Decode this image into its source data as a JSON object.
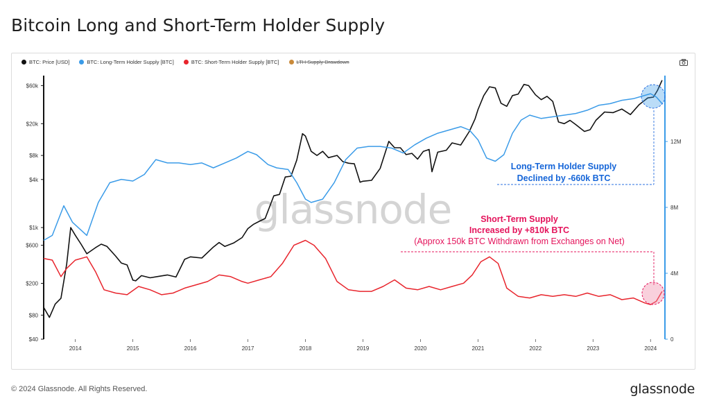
{
  "page": {
    "title": "Bitcoin Long and Short-Term Holder Supply",
    "footer": "© 2024 Glassnode. All Rights Reserved.",
    "brand": "glassnode",
    "watermark": "glassnode"
  },
  "legend": [
    {
      "label": "BTC: Price [USD]",
      "color": "#111111",
      "strike": false
    },
    {
      "label": "BTC: Long-Term Holder Supply [BTC]",
      "color": "#3a9be8",
      "strike": false
    },
    {
      "label": "BTC: Short-Term Holder Supply [BTC]",
      "color": "#e8242c",
      "strike": false
    },
    {
      "label": "LTH Supply Drawdown",
      "color": "#c98a3a",
      "strike": true
    }
  ],
  "annotations": {
    "lth_line1": "Long-Term Holder Supply",
    "lth_line2": "Declined by -660k BTC",
    "sth_line1": "Short-Term Supply",
    "sth_line2": "Increased by +810k BTC",
    "sth_line3": "(Approx 150k BTC Withdrawn from Exchanges on Net)"
  },
  "colors": {
    "price": "#111111",
    "lth": "#3a9be8",
    "sth": "#e8242c",
    "lth_text": "#1565d8",
    "sth_text": "#e4135b"
  },
  "chart_data": {
    "type": "line",
    "title": "Bitcoin Long and Short-Term Holder Supply",
    "x_ticks": [
      "2014",
      "2015",
      "2016",
      "2017",
      "2018",
      "2019",
      "2020",
      "2021",
      "2022",
      "2023",
      "2024"
    ],
    "x_range": [
      2013.45,
      2024.25
    ],
    "left_axis": {
      "scale": "log",
      "range": [
        40,
        80000
      ],
      "ticks": [
        {
          "value": 40,
          "label": "$40"
        },
        {
          "value": 80,
          "label": "$80"
        },
        {
          "value": 200,
          "label": "$200"
        },
        {
          "value": 600,
          "label": "$600"
        },
        {
          "value": 1000,
          "label": "$1k"
        },
        {
          "value": 4000,
          "label": "$4k"
        },
        {
          "value": 8000,
          "label": "$8k"
        },
        {
          "value": 20000,
          "label": "$20k"
        },
        {
          "value": 60000,
          "label": "$60k"
        }
      ]
    },
    "right_axis": {
      "scale": "linear",
      "range": [
        0,
        16000000
      ],
      "ticks": [
        {
          "value": 0,
          "label": "0"
        },
        {
          "value": 4000000,
          "label": "4M"
        },
        {
          "value": 8000000,
          "label": "8M"
        },
        {
          "value": 12000000,
          "label": "12M"
        }
      ]
    },
    "series": [
      {
        "name": "BTC: Price [USD]",
        "axis": "left",
        "points": [
          [
            2013.45,
            100
          ],
          [
            2013.55,
            75
          ],
          [
            2013.65,
            110
          ],
          [
            2013.75,
            130
          ],
          [
            2013.85,
            350
          ],
          [
            2013.92,
            1000
          ],
          [
            2014.0,
            800
          ],
          [
            2014.1,
            620
          ],
          [
            2014.2,
            470
          ],
          [
            2014.35,
            560
          ],
          [
            2014.45,
            620
          ],
          [
            2014.55,
            580
          ],
          [
            2014.7,
            440
          ],
          [
            2014.8,
            360
          ],
          [
            2014.9,
            340
          ],
          [
            2015.0,
            220
          ],
          [
            2015.05,
            215
          ],
          [
            2015.15,
            250
          ],
          [
            2015.3,
            235
          ],
          [
            2015.45,
            245
          ],
          [
            2015.6,
            255
          ],
          [
            2015.75,
            240
          ],
          [
            2015.9,
            400
          ],
          [
            2016.0,
            430
          ],
          [
            2016.2,
            415
          ],
          [
            2016.4,
            570
          ],
          [
            2016.5,
            650
          ],
          [
            2016.6,
            580
          ],
          [
            2016.75,
            640
          ],
          [
            2016.9,
            750
          ],
          [
            2017.0,
            970
          ],
          [
            2017.1,
            1100
          ],
          [
            2017.2,
            1200
          ],
          [
            2017.3,
            1300
          ],
          [
            2017.45,
            2500
          ],
          [
            2017.55,
            2600
          ],
          [
            2017.65,
            4300
          ],
          [
            2017.75,
            4400
          ],
          [
            2017.85,
            7000
          ],
          [
            2017.95,
            15000
          ],
          [
            2018.0,
            14000
          ],
          [
            2018.1,
            9000
          ],
          [
            2018.2,
            8000
          ],
          [
            2018.3,
            9000
          ],
          [
            2018.4,
            7500
          ],
          [
            2018.55,
            8000
          ],
          [
            2018.65,
            6700
          ],
          [
            2018.75,
            6400
          ],
          [
            2018.85,
            6300
          ],
          [
            2018.95,
            3700
          ],
          [
            2019.0,
            3800
          ],
          [
            2019.15,
            3900
          ],
          [
            2019.3,
            5500
          ],
          [
            2019.45,
            12000
          ],
          [
            2019.55,
            10000
          ],
          [
            2019.65,
            10000
          ],
          [
            2019.75,
            8200
          ],
          [
            2019.85,
            8500
          ],
          [
            2019.95,
            7200
          ],
          [
            2020.05,
            9000
          ],
          [
            2020.15,
            9500
          ],
          [
            2020.2,
            5000
          ],
          [
            2020.3,
            8800
          ],
          [
            2020.45,
            9300
          ],
          [
            2020.55,
            11500
          ],
          [
            2020.7,
            10800
          ],
          [
            2020.85,
            16000
          ],
          [
            2020.95,
            23000
          ],
          [
            2021.0,
            30000
          ],
          [
            2021.1,
            45000
          ],
          [
            2021.2,
            58000
          ],
          [
            2021.3,
            56000
          ],
          [
            2021.4,
            36000
          ],
          [
            2021.5,
            33000
          ],
          [
            2021.6,
            45000
          ],
          [
            2021.7,
            47000
          ],
          [
            2021.8,
            62000
          ],
          [
            2021.88,
            60000
          ],
          [
            2022.0,
            46000
          ],
          [
            2022.1,
            40000
          ],
          [
            2022.2,
            44000
          ],
          [
            2022.3,
            38000
          ],
          [
            2022.4,
            21000
          ],
          [
            2022.5,
            20000
          ],
          [
            2022.6,
            22000
          ],
          [
            2022.7,
            19500
          ],
          [
            2022.85,
            16000
          ],
          [
            2022.95,
            16800
          ],
          [
            2023.05,
            22000
          ],
          [
            2023.2,
            28000
          ],
          [
            2023.35,
            27500
          ],
          [
            2023.5,
            30500
          ],
          [
            2023.65,
            26000
          ],
          [
            2023.8,
            34500
          ],
          [
            2023.95,
            42000
          ],
          [
            2024.05,
            43000
          ],
          [
            2024.12,
            52000
          ],
          [
            2024.2,
            70000
          ]
        ]
      },
      {
        "name": "BTC: Long-Term Holder Supply [BTC]",
        "axis": "right",
        "points": [
          [
            2013.45,
            6000000
          ],
          [
            2013.6,
            6300000
          ],
          [
            2013.8,
            8100000
          ],
          [
            2013.95,
            7100000
          ],
          [
            2014.2,
            6300000
          ],
          [
            2014.4,
            8300000
          ],
          [
            2014.6,
            9500000
          ],
          [
            2014.8,
            9700000
          ],
          [
            2015.0,
            9600000
          ],
          [
            2015.2,
            10000000
          ],
          [
            2015.4,
            10900000
          ],
          [
            2015.6,
            10700000
          ],
          [
            2015.8,
            10700000
          ],
          [
            2016.0,
            10600000
          ],
          [
            2016.2,
            10700000
          ],
          [
            2016.4,
            10400000
          ],
          [
            2016.6,
            10700000
          ],
          [
            2016.8,
            11000000
          ],
          [
            2017.0,
            11400000
          ],
          [
            2017.15,
            11200000
          ],
          [
            2017.35,
            10600000
          ],
          [
            2017.5,
            10400000
          ],
          [
            2017.7,
            10300000
          ],
          [
            2017.85,
            9500000
          ],
          [
            2018.0,
            8500000
          ],
          [
            2018.1,
            8300000
          ],
          [
            2018.3,
            8500000
          ],
          [
            2018.5,
            9500000
          ],
          [
            2018.7,
            10900000
          ],
          [
            2018.9,
            11600000
          ],
          [
            2019.1,
            11700000
          ],
          [
            2019.3,
            11700000
          ],
          [
            2019.5,
            11600000
          ],
          [
            2019.7,
            11300000
          ],
          [
            2019.9,
            11800000
          ],
          [
            2020.1,
            12200000
          ],
          [
            2020.3,
            12500000
          ],
          [
            2020.5,
            12700000
          ],
          [
            2020.7,
            12900000
          ],
          [
            2020.85,
            12700000
          ],
          [
            2021.0,
            12100000
          ],
          [
            2021.15,
            11000000
          ],
          [
            2021.3,
            10800000
          ],
          [
            2021.45,
            11200000
          ],
          [
            2021.6,
            12500000
          ],
          [
            2021.75,
            13300000
          ],
          [
            2021.9,
            13600000
          ],
          [
            2022.1,
            13400000
          ],
          [
            2022.3,
            13500000
          ],
          [
            2022.5,
            13600000
          ],
          [
            2022.7,
            13700000
          ],
          [
            2022.9,
            13900000
          ],
          [
            2023.1,
            14200000
          ],
          [
            2023.3,
            14300000
          ],
          [
            2023.5,
            14500000
          ],
          [
            2023.7,
            14600000
          ],
          [
            2023.9,
            14800000
          ],
          [
            2024.0,
            14900000
          ],
          [
            2024.1,
            14700000
          ],
          [
            2024.2,
            14300000
          ]
        ]
      },
      {
        "name": "BTC: Short-Term Holder Supply [BTC]",
        "axis": "right",
        "points": [
          [
            2013.45,
            4900000
          ],
          [
            2013.6,
            4800000
          ],
          [
            2013.75,
            3800000
          ],
          [
            2013.85,
            4300000
          ],
          [
            2014.0,
            4800000
          ],
          [
            2014.2,
            5000000
          ],
          [
            2014.35,
            4100000
          ],
          [
            2014.5,
            3000000
          ],
          [
            2014.7,
            2800000
          ],
          [
            2014.9,
            2700000
          ],
          [
            2015.1,
            3200000
          ],
          [
            2015.3,
            3000000
          ],
          [
            2015.5,
            2700000
          ],
          [
            2015.7,
            2800000
          ],
          [
            2015.9,
            3100000
          ],
          [
            2016.1,
            3300000
          ],
          [
            2016.3,
            3500000
          ],
          [
            2016.5,
            3900000
          ],
          [
            2016.7,
            3800000
          ],
          [
            2016.9,
            3500000
          ],
          [
            2017.0,
            3400000
          ],
          [
            2017.2,
            3600000
          ],
          [
            2017.4,
            3800000
          ],
          [
            2017.6,
            4600000
          ],
          [
            2017.8,
            5700000
          ],
          [
            2018.0,
            6000000
          ],
          [
            2018.15,
            5700000
          ],
          [
            2018.35,
            4900000
          ],
          [
            2018.55,
            3500000
          ],
          [
            2018.75,
            3000000
          ],
          [
            2018.95,
            2900000
          ],
          [
            2019.15,
            2900000
          ],
          [
            2019.35,
            3200000
          ],
          [
            2019.55,
            3600000
          ],
          [
            2019.75,
            3100000
          ],
          [
            2019.95,
            3000000
          ],
          [
            2020.15,
            3200000
          ],
          [
            2020.35,
            3000000
          ],
          [
            2020.55,
            3200000
          ],
          [
            2020.75,
            3400000
          ],
          [
            2020.9,
            3900000
          ],
          [
            2021.05,
            4700000
          ],
          [
            2021.2,
            5000000
          ],
          [
            2021.35,
            4600000
          ],
          [
            2021.5,
            3100000
          ],
          [
            2021.7,
            2600000
          ],
          [
            2021.9,
            2500000
          ],
          [
            2022.1,
            2700000
          ],
          [
            2022.3,
            2600000
          ],
          [
            2022.5,
            2700000
          ],
          [
            2022.7,
            2600000
          ],
          [
            2022.9,
            2800000
          ],
          [
            2023.1,
            2600000
          ],
          [
            2023.3,
            2700000
          ],
          [
            2023.5,
            2400000
          ],
          [
            2023.7,
            2500000
          ],
          [
            2023.9,
            2200000
          ],
          [
            2024.0,
            2100000
          ],
          [
            2024.1,
            2300000
          ],
          [
            2024.2,
            2900000
          ]
        ]
      }
    ]
  }
}
